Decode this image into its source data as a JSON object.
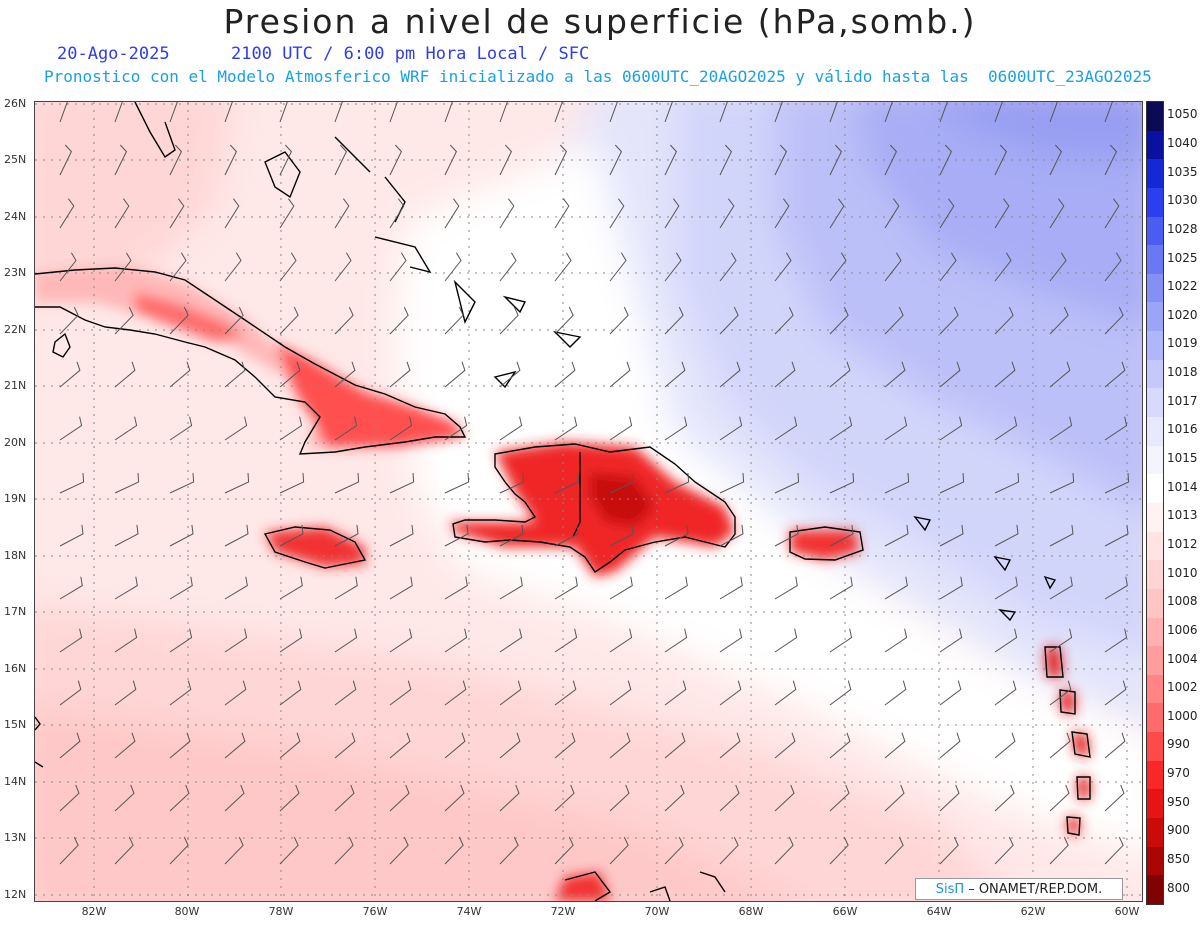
{
  "header": {
    "title": "Presion a nivel de superficie (hPa,somb.)",
    "date": "20-Ago-2025",
    "time_info": "2100 UTC / 6:00 pm Hora Local / SFC",
    "forecast_info": "Pronostico con el Modelo Atmosferico WRF inicializado a las 0600UTC_20AGO2025 y válido hasta las  0600UTC_23AGO2025"
  },
  "map": {
    "lat_labels": [
      "26N",
      "25N",
      "24N",
      "23N",
      "22N",
      "21N",
      "20N",
      "19N",
      "18N",
      "17N",
      "16N",
      "15N",
      "14N",
      "13N",
      "12N"
    ],
    "lon_labels": [
      "82W",
      "80W",
      "78W",
      "76W",
      "74W",
      "72W",
      "70W",
      "68W",
      "66W",
      "64W",
      "62W",
      "60W"
    ],
    "pressure_field": "low pressure over Greater Antilles, high pressure to the northeast",
    "credit_brand": "SisΠ",
    "credit_text": "– ONAMET/REP.DOM."
  },
  "colorbar": {
    "labels": [
      "1050",
      "1040",
      "1035",
      "1030",
      "1028",
      "1025",
      "1022",
      "1020",
      "1019",
      "1018",
      "1017",
      "1016",
      "1015",
      "1014",
      "1013",
      "1012",
      "1010",
      "1008",
      "1006",
      "1004",
      "1002",
      "1000",
      "990",
      "970",
      "950",
      "900",
      "850",
      "800"
    ],
    "colors": [
      "#0a0a55",
      "#0a10a0",
      "#1428d8",
      "#2a40f0",
      "#4a5cf2",
      "#6a78f4",
      "#8490f6",
      "#9ca4f8",
      "#b0b6fa",
      "#c4c8fc",
      "#d8dafd",
      "#e8e9fe",
      "#f4f4ff",
      "#ffffff",
      "#fff2f2",
      "#ffe4e4",
      "#ffd4d4",
      "#ffc4c4",
      "#ffb0b0",
      "#ff9c9c",
      "#ff8484",
      "#ff6a6a",
      "#ff4a4a",
      "#f82828",
      "#e61414",
      "#cc0a0a",
      "#aa0606",
      "#800202"
    ]
  }
}
